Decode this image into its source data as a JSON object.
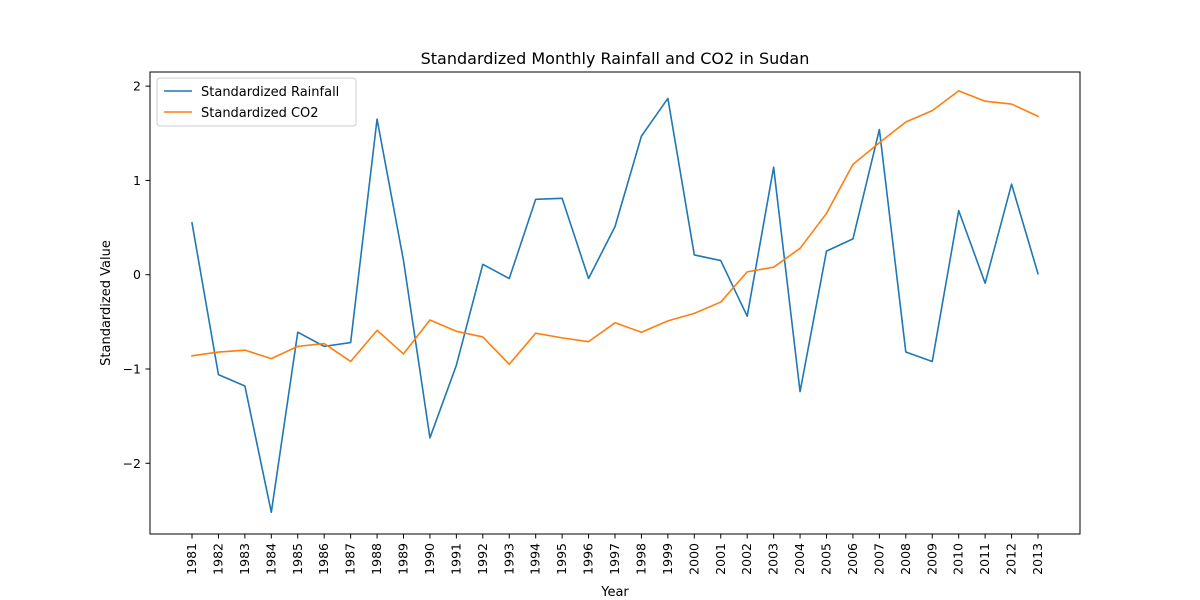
{
  "chart_data": {
    "type": "line",
    "title": "Standardized Monthly Rainfall and CO2 in Sudan",
    "xlabel": "Year",
    "ylabel": "Standardized Value",
    "x": [
      1981,
      1982,
      1983,
      1984,
      1985,
      1986,
      1987,
      1988,
      1989,
      1990,
      1991,
      1992,
      1993,
      1994,
      1995,
      1996,
      1997,
      1998,
      1999,
      2000,
      2001,
      2002,
      2003,
      2004,
      2005,
      2006,
      2007,
      2008,
      2009,
      2010,
      2011,
      2012,
      2013
    ],
    "ylim": [
      -2.75,
      2.15
    ],
    "yticks": [
      -2,
      -1,
      0,
      1,
      2
    ],
    "yticklabels": [
      "−2",
      "−1",
      "0",
      "1",
      "2"
    ],
    "grid": false,
    "legend_position": "upper-left",
    "series": [
      {
        "name": "Standardized Rainfall",
        "color": "#1f77b4",
        "values": [
          0.55,
          -1.06,
          -1.18,
          -2.52,
          -0.61,
          -0.76,
          -0.72,
          1.65,
          0.15,
          -1.73,
          -0.96,
          0.11,
          -0.04,
          0.8,
          0.81,
          -0.04,
          0.51,
          1.47,
          1.87,
          0.21,
          0.15,
          -0.44,
          1.14,
          -1.24,
          0.25,
          0.38,
          1.54,
          -0.82,
          -0.92,
          0.68,
          -0.09,
          0.96,
          0.01
        ]
      },
      {
        "name": "Standardized CO2",
        "color": "#ff7f0e",
        "values": [
          -0.86,
          -0.82,
          -0.8,
          -0.89,
          -0.76,
          -0.73,
          -0.92,
          -0.59,
          -0.84,
          -0.48,
          -0.6,
          -0.66,
          -0.95,
          -0.62,
          -0.67,
          -0.71,
          -0.51,
          -0.61,
          -0.49,
          -0.41,
          -0.29,
          0.03,
          0.08,
          0.28,
          0.65,
          1.17,
          1.4,
          1.62,
          1.74,
          1.95,
          1.84,
          1.81,
          1.68
        ]
      }
    ]
  }
}
